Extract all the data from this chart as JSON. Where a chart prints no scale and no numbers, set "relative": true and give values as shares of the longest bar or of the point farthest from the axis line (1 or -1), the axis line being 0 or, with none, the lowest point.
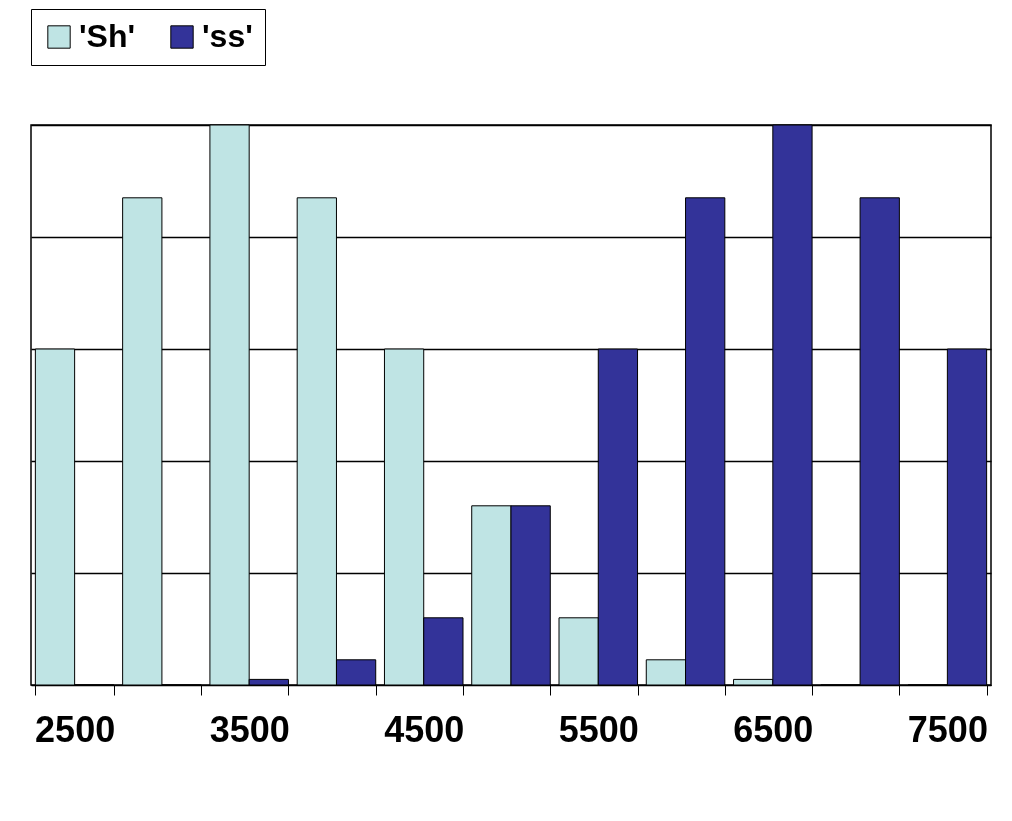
{
  "chart_data": {
    "type": "bar",
    "relative": true,
    "categories": [
      "2500",
      null,
      "3500",
      null,
      "4500",
      null,
      "5500",
      null,
      "6500",
      null,
      "7500"
    ],
    "series": [
      {
        "name": "'Sh'",
        "color": "#bfe4e4",
        "values": [
          0.6,
          0.87,
          1,
          0.87,
          0.6,
          0.32,
          0.12,
          0.045,
          0.01,
          0,
          0
        ]
      },
      {
        "name": "'ss'",
        "color": "#333399",
        "values": [
          0,
          0,
          0.01,
          0.045,
          0.12,
          0.32,
          0.6,
          0.87,
          1,
          0.87,
          0.6
        ]
      }
    ],
    "grid": "y",
    "legend": "top"
  }
}
